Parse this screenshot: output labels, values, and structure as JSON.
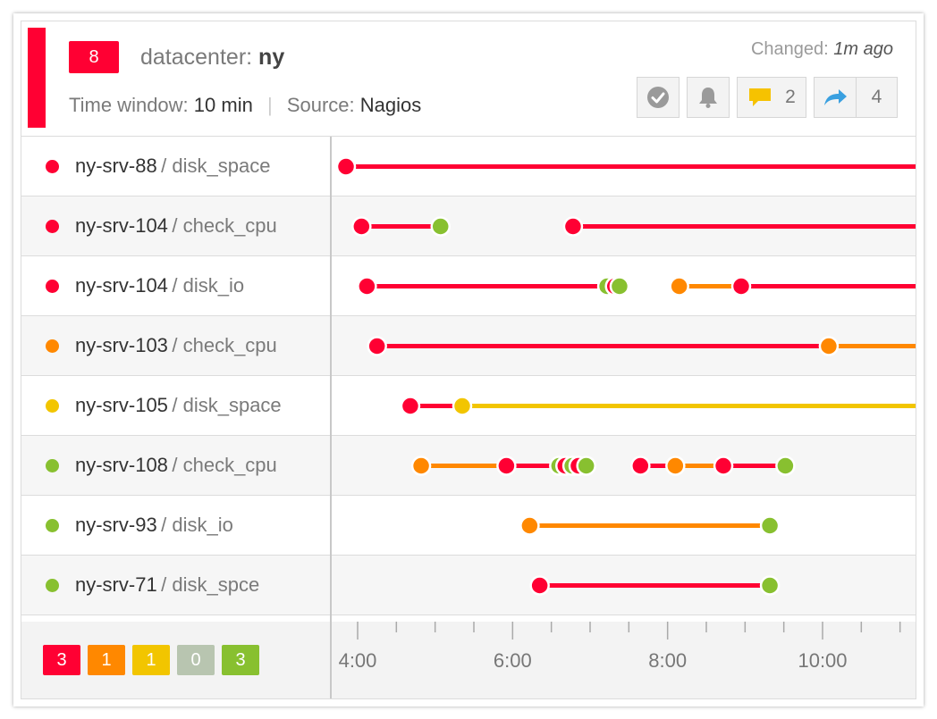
{
  "alert": {
    "count": "8",
    "title_key": "datacenter:",
    "title_value": "ny",
    "time_window_label": "Time window:",
    "time_window_value": "10 min",
    "separator": "|",
    "source_label": "Source:",
    "source_value": "Nagios",
    "changed_label": "Changed:",
    "changed_value": "1m ago",
    "comments_count": "2",
    "shares_count": "4"
  },
  "colors": {
    "critical": "#ff0033",
    "warning": "#ff8800",
    "minor": "#f2c500",
    "unknown": "#b8c5b0",
    "ok": "#88c030",
    "comment": "#f6c200",
    "share": "#3aa0e0"
  },
  "checks": [
    {
      "host": "ny-srv-88",
      "service": "/ disk_space",
      "status": "critical"
    },
    {
      "host": "ny-srv-104",
      "service": "/ check_cpu",
      "status": "critical"
    },
    {
      "host": "ny-srv-104",
      "service": "/ disk_io",
      "status": "critical"
    },
    {
      "host": "ny-srv-103",
      "service": "/ check_cpu",
      "status": "warning"
    },
    {
      "host": "ny-srv-105",
      "service": "/ disk_space",
      "status": "minor"
    },
    {
      "host": "ny-srv-108",
      "service": "/ check_cpu",
      "status": "ok"
    },
    {
      "host": "ny-srv-93",
      "service": "/ disk_io",
      "status": "ok"
    },
    {
      "host": "ny-srv-71",
      "service": "/ disk_spce",
      "status": "ok"
    }
  ],
  "legend": [
    {
      "count": "3",
      "status": "critical"
    },
    {
      "count": "1",
      "status": "warning"
    },
    {
      "count": "1",
      "status": "minor"
    },
    {
      "count": "0",
      "status": "unknown"
    },
    {
      "count": "3",
      "status": "ok"
    }
  ],
  "chart_data": {
    "type": "timeline",
    "x_ticks": [
      "4:00",
      "6:00",
      "8:00",
      "10:00"
    ],
    "xlim": [
      3.7,
      11.2
    ],
    "rows": [
      {
        "events": [
          {
            "t": 3.85,
            "status": "critical"
          }
        ],
        "ongoing": true
      },
      {
        "events": [
          {
            "t": 4.05,
            "status": "critical"
          },
          {
            "t": 5.07,
            "status": "ok"
          },
          {
            "t": 6.78,
            "status": "critical"
          }
        ],
        "ongoing": true
      },
      {
        "events": [
          {
            "t": 4.12,
            "status": "critical"
          },
          {
            "t": 7.22,
            "status": "ok"
          },
          {
            "t": 7.32,
            "status": "critical"
          },
          {
            "t": 7.38,
            "status": "ok"
          },
          {
            "t": 8.15,
            "status": "warning"
          },
          {
            "t": 8.95,
            "status": "critical"
          }
        ],
        "ongoing": true
      },
      {
        "events": [
          {
            "t": 4.25,
            "status": "critical"
          },
          {
            "t": 10.08,
            "status": "warning"
          }
        ],
        "ongoing": true
      },
      {
        "events": [
          {
            "t": 4.68,
            "status": "critical"
          },
          {
            "t": 5.35,
            "status": "minor"
          }
        ],
        "ongoing": true
      },
      {
        "events": [
          {
            "t": 4.82,
            "status": "warning"
          },
          {
            "t": 5.92,
            "status": "critical"
          },
          {
            "t": 6.6,
            "status": "ok"
          },
          {
            "t": 6.68,
            "status": "critical"
          },
          {
            "t": 6.77,
            "status": "ok"
          },
          {
            "t": 6.85,
            "status": "critical"
          },
          {
            "t": 6.95,
            "status": "ok"
          },
          {
            "t": 7.65,
            "status": "critical"
          },
          {
            "t": 8.1,
            "status": "warning"
          },
          {
            "t": 8.72,
            "status": "critical"
          },
          {
            "t": 9.52,
            "status": "ok"
          }
        ],
        "ongoing": false
      },
      {
        "events": [
          {
            "t": 6.22,
            "status": "warning"
          },
          {
            "t": 9.32,
            "status": "ok"
          }
        ],
        "ongoing": false
      },
      {
        "events": [
          {
            "t": 6.35,
            "status": "critical"
          },
          {
            "t": 9.32,
            "status": "ok"
          }
        ],
        "ongoing": false
      }
    ]
  }
}
